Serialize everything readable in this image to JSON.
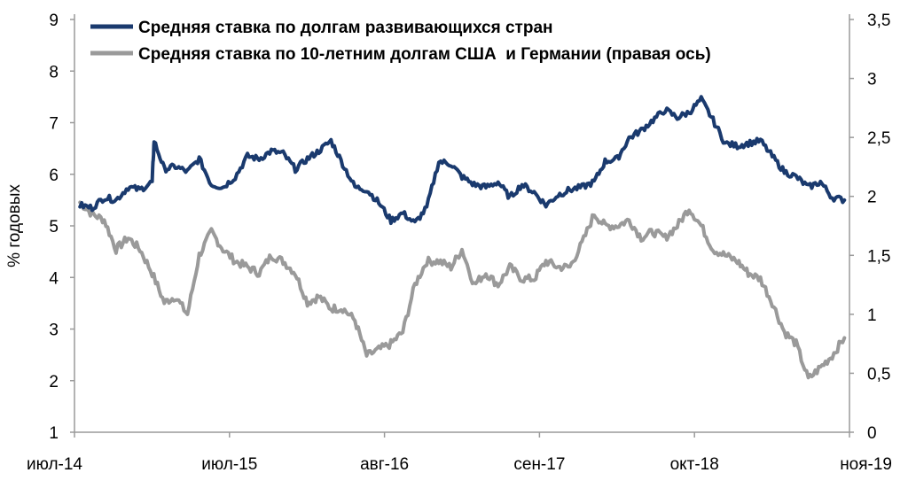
{
  "chart_data": {
    "type": "line",
    "ylabel": "% годовых",
    "y_left": {
      "min": 1,
      "max": 9,
      "ticks": [
        "1",
        "2",
        "3",
        "4",
        "5",
        "6",
        "7",
        "8",
        "9"
      ]
    },
    "y_right": {
      "min": 0,
      "max": 3.5,
      "ticks": [
        "0",
        "0,5",
        "1",
        "1,5",
        "2",
        "2,5",
        "3",
        "3,5"
      ]
    },
    "x_ticks": [
      "июл-14",
      "июл-15",
      "авг-16",
      "сен-17",
      "окт-18",
      "ноя-19"
    ],
    "legend_position": "top-left",
    "grid": false,
    "series": [
      {
        "name": "Средняя ставка по долгам развивающихся стран",
        "axis": "left",
        "color": "#1a3a6e",
        "points": [
          [
            "2014-07",
            5.4
          ],
          [
            "2014-08",
            5.35
          ],
          [
            "2014-09",
            5.55
          ],
          [
            "2014-10",
            5.5
          ],
          [
            "2014-11",
            5.75
          ],
          [
            "2014-12",
            5.7
          ],
          [
            "2015-01",
            5.85
          ],
          [
            "2015-01-20",
            6.65
          ],
          [
            "2015-02",
            6.1
          ],
          [
            "2015-03",
            6.15
          ],
          [
            "2015-04",
            6.05
          ],
          [
            "2015-05",
            6.3
          ],
          [
            "2015-06",
            5.8
          ],
          [
            "2015-07",
            5.75
          ],
          [
            "2015-08",
            5.95
          ],
          [
            "2015-09",
            6.35
          ],
          [
            "2015-10",
            6.3
          ],
          [
            "2015-11",
            6.45
          ],
          [
            "2015-12",
            6.4
          ],
          [
            "2016-01",
            6.1
          ],
          [
            "2016-02",
            6.3
          ],
          [
            "2016-03",
            6.45
          ],
          [
            "2016-04",
            6.65
          ],
          [
            "2016-05",
            6.2
          ],
          [
            "2016-06",
            5.75
          ],
          [
            "2016-07",
            5.7
          ],
          [
            "2016-08",
            5.45
          ],
          [
            "2016-09",
            5.1
          ],
          [
            "2016-10",
            5.25
          ],
          [
            "2016-11",
            5.05
          ],
          [
            "2016-12",
            5.35
          ],
          [
            "2017-01",
            6.25
          ],
          [
            "2017-02",
            6.2
          ],
          [
            "2017-03",
            5.95
          ],
          [
            "2017-04",
            5.8
          ],
          [
            "2017-05",
            5.75
          ],
          [
            "2017-06",
            5.85
          ],
          [
            "2017-07",
            5.55
          ],
          [
            "2017-08",
            5.8
          ],
          [
            "2017-09",
            5.65
          ],
          [
            "2017-10",
            5.4
          ],
          [
            "2017-11",
            5.6
          ],
          [
            "2017-12",
            5.7
          ],
          [
            "2018-01",
            5.75
          ],
          [
            "2018-02",
            5.85
          ],
          [
            "2018-03",
            6.25
          ],
          [
            "2018-04",
            6.3
          ],
          [
            "2018-05",
            6.7
          ],
          [
            "2018-06",
            6.85
          ],
          [
            "2018-07",
            7.05
          ],
          [
            "2018-08",
            7.25
          ],
          [
            "2018-09",
            7.1
          ],
          [
            "2018-10",
            7.2
          ],
          [
            "2018-11",
            7.45
          ],
          [
            "2018-12",
            7.05
          ],
          [
            "2019-01",
            6.6
          ],
          [
            "2019-02",
            6.55
          ],
          [
            "2019-03",
            6.6
          ],
          [
            "2019-04",
            6.65
          ],
          [
            "2019-05",
            6.35
          ],
          [
            "2019-06",
            6.05
          ],
          [
            "2019-07",
            5.95
          ],
          [
            "2019-08",
            5.75
          ],
          [
            "2019-09",
            5.85
          ],
          [
            "2019-10",
            5.55
          ],
          [
            "2019-11",
            5.5
          ]
        ]
      },
      {
        "name": "Средняя ставка по 10-летним долгам США  и Германии (правая ось)",
        "axis": "right",
        "color": "#9a9a9a",
        "points": [
          [
            "2014-07",
            1.95
          ],
          [
            "2014-08",
            1.85
          ],
          [
            "2014-09",
            1.8
          ],
          [
            "2014-10",
            1.55
          ],
          [
            "2014-11",
            1.65
          ],
          [
            "2014-12",
            1.55
          ],
          [
            "2015-01",
            1.35
          ],
          [
            "2015-02",
            1.1
          ],
          [
            "2015-03",
            1.15
          ],
          [
            "2015-04",
            1.0
          ],
          [
            "2015-05",
            1.5
          ],
          [
            "2015-06",
            1.7
          ],
          [
            "2015-07",
            1.55
          ],
          [
            "2015-08",
            1.45
          ],
          [
            "2015-09",
            1.4
          ],
          [
            "2015-10",
            1.35
          ],
          [
            "2015-11",
            1.5
          ],
          [
            "2015-12",
            1.45
          ],
          [
            "2016-01",
            1.35
          ],
          [
            "2016-02",
            1.1
          ],
          [
            "2016-03",
            1.15
          ],
          [
            "2016-04",
            1.05
          ],
          [
            "2016-05",
            1.05
          ],
          [
            "2016-06",
            0.95
          ],
          [
            "2016-07",
            0.65
          ],
          [
            "2016-08",
            0.7
          ],
          [
            "2016-09",
            0.75
          ],
          [
            "2016-10",
            0.85
          ],
          [
            "2016-11",
            1.25
          ],
          [
            "2016-12",
            1.45
          ],
          [
            "2017-01",
            1.45
          ],
          [
            "2017-02",
            1.4
          ],
          [
            "2017-03",
            1.55
          ],
          [
            "2017-04",
            1.25
          ],
          [
            "2017-05",
            1.35
          ],
          [
            "2017-06",
            1.25
          ],
          [
            "2017-07",
            1.4
          ],
          [
            "2017-08",
            1.3
          ],
          [
            "2017-09",
            1.3
          ],
          [
            "2017-10",
            1.45
          ],
          [
            "2017-11",
            1.4
          ],
          [
            "2017-12",
            1.4
          ],
          [
            "2018-01",
            1.6
          ],
          [
            "2018-02",
            1.85
          ],
          [
            "2018-03",
            1.75
          ],
          [
            "2018-04",
            1.75
          ],
          [
            "2018-05",
            1.8
          ],
          [
            "2018-06",
            1.65
          ],
          [
            "2018-07",
            1.7
          ],
          [
            "2018-08",
            1.65
          ],
          [
            "2018-09",
            1.75
          ],
          [
            "2018-10",
            1.9
          ],
          [
            "2018-11",
            1.75
          ],
          [
            "2018-12",
            1.55
          ],
          [
            "2019-01",
            1.5
          ],
          [
            "2019-02",
            1.45
          ],
          [
            "2019-03",
            1.35
          ],
          [
            "2019-04",
            1.3
          ],
          [
            "2019-05",
            1.1
          ],
          [
            "2019-06",
            0.85
          ],
          [
            "2019-07",
            0.75
          ],
          [
            "2019-08",
            0.45
          ],
          [
            "2019-09",
            0.55
          ],
          [
            "2019-10",
            0.65
          ],
          [
            "2019-11",
            0.8
          ]
        ]
      }
    ]
  }
}
